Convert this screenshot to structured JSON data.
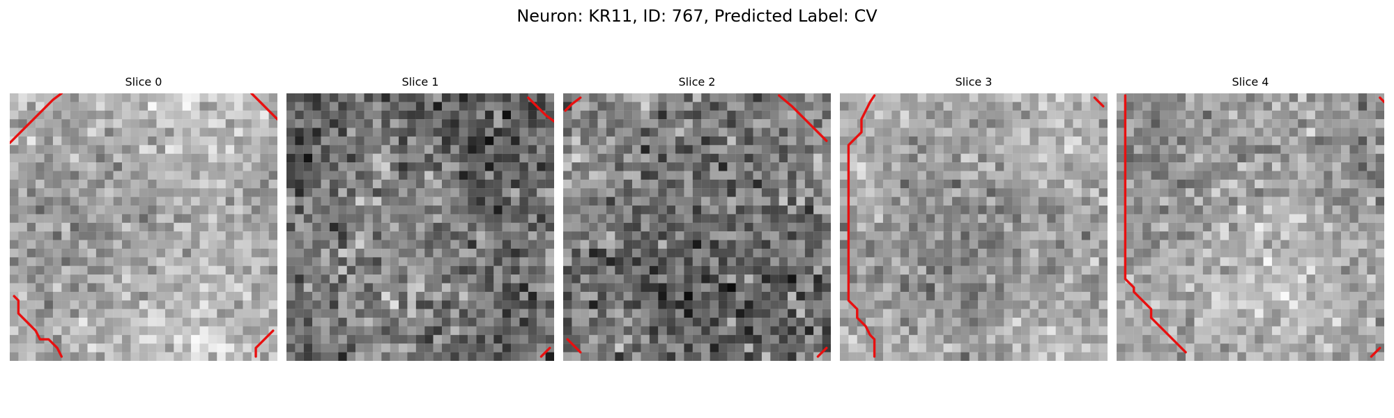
{
  "figure": {
    "title": "Neuron: KR11, ID: 767, Predicted Label: CV"
  },
  "panels": [
    {
      "title": "Slice 0",
      "brightness": 0.68,
      "contrast": 0.14,
      "seed": 11,
      "contours": [
        [
          [
            0,
            11.5
          ],
          [
            2,
            9.5
          ],
          [
            4,
            7.5
          ],
          [
            6,
            5.5
          ],
          [
            8,
            3.5
          ],
          [
            10,
            1.5
          ],
          [
            12,
            0
          ]
        ],
        [
          [
            56,
            0
          ],
          [
            58,
            2
          ],
          [
            60,
            4
          ],
          [
            62,
            6
          ]
        ],
        [
          [
            1,
            47
          ],
          [
            2,
            48
          ],
          [
            2,
            51
          ],
          [
            4,
            53
          ],
          [
            6,
            55
          ],
          [
            7,
            57
          ],
          [
            9,
            57
          ],
          [
            11,
            59
          ],
          [
            12,
            61
          ]
        ],
        [
          [
            57,
            61
          ],
          [
            57,
            59
          ],
          [
            59,
            57
          ],
          [
            61,
            55
          ]
        ]
      ]
    },
    {
      "title": "Slice 1",
      "brightness": 0.45,
      "contrast": 0.2,
      "seed": 23,
      "contours": [
        [
          [
            56,
            1
          ],
          [
            58,
            3
          ],
          [
            60,
            5
          ],
          [
            62,
            6.5
          ]
        ],
        [
          [
            59,
            61
          ],
          [
            61,
            59
          ]
        ]
      ]
    },
    {
      "title": "Slice 2",
      "brightness": 0.46,
      "contrast": 0.2,
      "seed": 37,
      "contours": [
        [
          [
            0.5,
            4
          ],
          [
            2,
            2.5
          ],
          [
            4,
            1
          ]
        ],
        [
          [
            50,
            0.5
          ],
          [
            53,
            3
          ],
          [
            56,
            6
          ],
          [
            59,
            9
          ],
          [
            61,
            11
          ]
        ],
        [
          [
            1,
            57
          ],
          [
            3,
            59
          ],
          [
            4,
            60
          ]
        ],
        [
          [
            59,
            61
          ],
          [
            61,
            59
          ]
        ]
      ]
    },
    {
      "title": "Slice 3",
      "brightness": 0.63,
      "contrast": 0.14,
      "seed": 41,
      "contours": [
        [
          [
            8,
            0.5
          ],
          [
            7,
            2
          ],
          [
            6,
            4
          ],
          [
            5,
            6
          ],
          [
            5,
            9
          ],
          [
            4,
            10
          ],
          [
            3,
            11
          ],
          [
            2,
            12
          ],
          [
            2,
            48
          ],
          [
            4,
            50
          ],
          [
            4,
            52
          ],
          [
            6,
            54
          ],
          [
            7,
            56
          ],
          [
            8,
            57
          ],
          [
            8,
            61
          ]
        ],
        [
          [
            59,
            1
          ],
          [
            61,
            3
          ]
        ]
      ]
    },
    {
      "title": "Slice 4",
      "brightness": 0.64,
      "contrast": 0.14,
      "seed": 53,
      "contours": [
        [
          [
            2,
            0.5
          ],
          [
            2,
            43
          ],
          [
            4,
            45
          ],
          [
            4,
            46
          ],
          [
            6,
            48
          ],
          [
            8,
            50
          ],
          [
            8,
            52
          ],
          [
            10,
            54
          ],
          [
            12,
            56
          ],
          [
            14,
            58
          ],
          [
            16,
            60
          ]
        ],
        [
          [
            61,
            1
          ],
          [
            62,
            2
          ]
        ],
        [
          [
            59,
            61
          ],
          [
            61,
            59
          ]
        ]
      ]
    }
  ],
  "colors": {
    "contour": "#e81010",
    "background": "#ffffff"
  }
}
